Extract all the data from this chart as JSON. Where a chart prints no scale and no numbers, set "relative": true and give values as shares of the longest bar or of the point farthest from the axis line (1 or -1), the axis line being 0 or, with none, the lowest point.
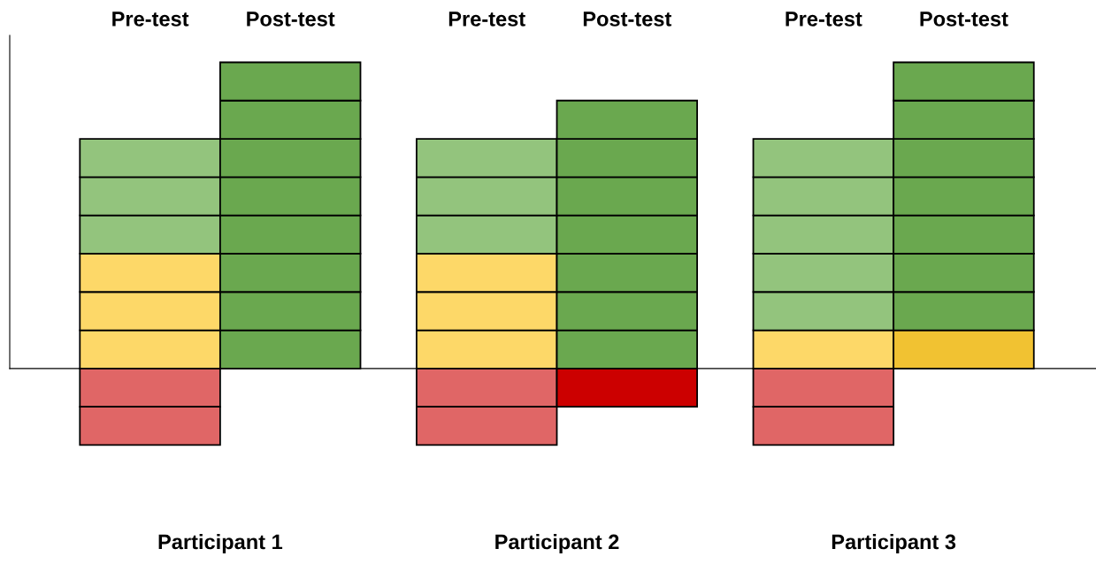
{
  "chart_data": {
    "type": "bar",
    "stacked": true,
    "relative": true,
    "categories": [
      "Pre-test",
      "Post-test",
      "Pre-test",
      "Post-test",
      "Pre-test",
      "Post-test"
    ],
    "annotations": [
      "Participant 1",
      "Participant 2",
      "Participant 3"
    ],
    "series": [
      {
        "values": [
          0.125,
          0.125,
          0.125,
          0.125,
          0.125,
          0.125
        ],
        "colors": [
          "#fdd868",
          "#6aa84f",
          "#fdd868",
          "#6aa84f",
          "#fdd868",
          "#f1c232"
        ]
      },
      {
        "values": [
          0.125,
          0.125,
          0.125,
          0.125,
          0.125,
          0.125
        ],
        "colors": [
          "#fdd868",
          "#6aa84f",
          "#fdd868",
          "#6aa84f",
          "#93c47d",
          "#6aa84f"
        ]
      },
      {
        "values": [
          0.125,
          0.125,
          0.125,
          0.125,
          0.125,
          0.125
        ],
        "colors": [
          "#fdd868",
          "#6aa84f",
          "#fdd868",
          "#6aa84f",
          "#93c47d",
          "#6aa84f"
        ]
      },
      {
        "values": [
          0.125,
          0.125,
          0.125,
          0.125,
          0.125,
          0.125
        ],
        "colors": [
          "#93c47d",
          "#6aa84f",
          "#93c47d",
          "#6aa84f",
          "#93c47d",
          "#6aa84f"
        ]
      },
      {
        "values": [
          0.125,
          0.125,
          0.125,
          0.125,
          0.125,
          0.125
        ],
        "colors": [
          "#93c47d",
          "#6aa84f",
          "#93c47d",
          "#6aa84f",
          "#93c47d",
          "#6aa84f"
        ]
      },
      {
        "values": [
          0.125,
          0.125,
          0.125,
          0.125,
          0.125,
          0.125
        ],
        "colors": [
          "#93c47d",
          "#6aa84f",
          "#93c47d",
          "#6aa84f",
          "#93c47d",
          "#6aa84f"
        ]
      },
      {
        "values": [
          null,
          0.125,
          null,
          0.125,
          null,
          0.125
        ],
        "colors": [
          null,
          "#6aa84f",
          null,
          "#6aa84f",
          null,
          "#6aa84f"
        ]
      },
      {
        "values": [
          null,
          0.125,
          null,
          null,
          null,
          0.125
        ],
        "colors": [
          null,
          "#6aa84f",
          null,
          null,
          null,
          "#6aa84f"
        ]
      },
      {
        "values": [
          -0.125,
          null,
          -0.125,
          -0.125,
          -0.125,
          null
        ],
        "colors": [
          "#e06666",
          null,
          "#e06666",
          "#cc0000",
          "#e06666",
          null
        ]
      },
      {
        "values": [
          -0.125,
          null,
          -0.125,
          null,
          -0.125,
          null
        ],
        "colors": [
          "#e06666",
          null,
          "#e06666",
          null,
          "#e06666",
          null
        ]
      }
    ]
  }
}
